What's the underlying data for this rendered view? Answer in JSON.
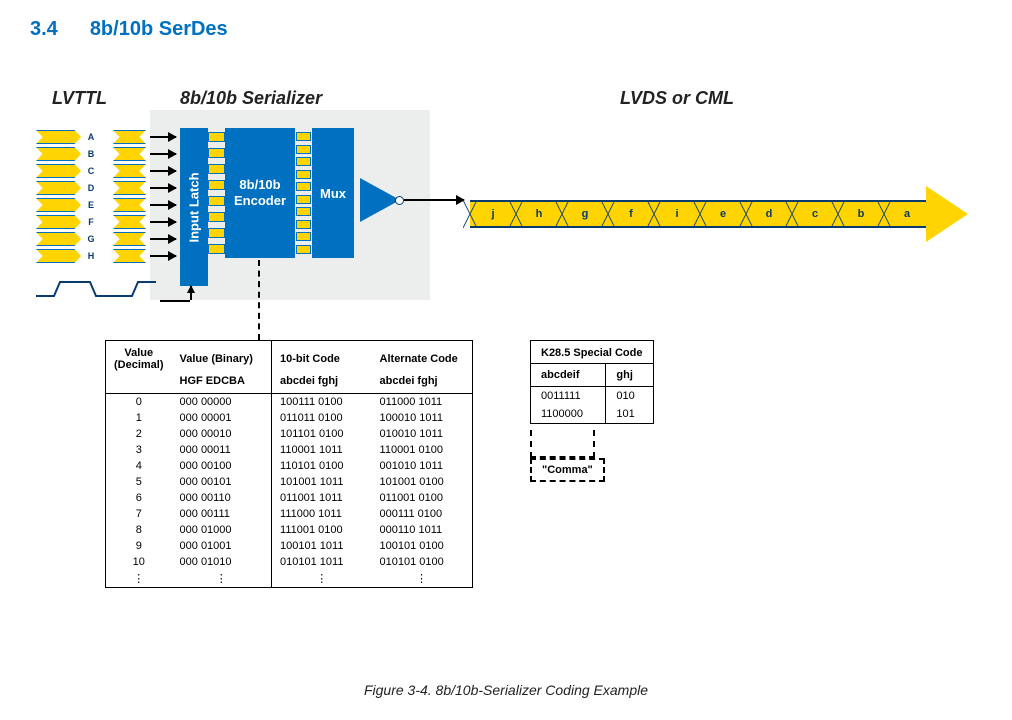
{
  "section": {
    "number": "3.4",
    "title": "8b/10b SerDes"
  },
  "labels": {
    "lvttl": "LVTTL",
    "serializer": "8b/10b Serializer",
    "lvds": "LVDS or CML"
  },
  "blocks": {
    "latch": "Input Latch",
    "encoder_l1": "8b/10b",
    "encoder_l2": "Encoder",
    "mux": "Mux"
  },
  "input_lanes": [
    "A",
    "B",
    "C",
    "D",
    "E",
    "F",
    "G",
    "H"
  ],
  "serial_bits": [
    "j",
    "h",
    "g",
    "f",
    "i",
    "e",
    "d",
    "c",
    "b",
    "a"
  ],
  "colors": {
    "blue": "#0070c0",
    "yellow": "#ffd400",
    "darkblue": "#0a3b6e",
    "gray": "#eceeee"
  },
  "main_table": {
    "headers": {
      "val_dec": "Value (Decimal)",
      "val_bin": "Value (Binary)",
      "code10": "10-bit Code",
      "alt": "Alternate Code",
      "bin_sub": "HGF EDCBA",
      "code_sub": "abcdei fghj",
      "alt_sub": "abcdei fghj"
    },
    "rows": [
      {
        "d": "0",
        "b": "000 00000",
        "c": "100111 0100",
        "a": "011000 1011"
      },
      {
        "d": "1",
        "b": "000 00001",
        "c": "011011 0100",
        "a": "100010 1011"
      },
      {
        "d": "2",
        "b": "000 00010",
        "c": "101101 0100",
        "a": "010010 1011"
      },
      {
        "d": "3",
        "b": "000 00011",
        "c": "110001 1011",
        "a": "110001 0100"
      },
      {
        "d": "4",
        "b": "000 00100",
        "c": "110101 0100",
        "a": "001010 1011"
      },
      {
        "d": "5",
        "b": "000 00101",
        "c": "101001 1011",
        "a": "101001 0100"
      },
      {
        "d": "6",
        "b": "000 00110",
        "c": "011001 1011",
        "a": "011001 0100"
      },
      {
        "d": "7",
        "b": "000 00111",
        "c": "111000 1011",
        "a": "000111 0100"
      },
      {
        "d": "8",
        "b": "000 01000",
        "c": "111001 0100",
        "a": "000110 1011"
      },
      {
        "d": "9",
        "b": "000 01001",
        "c": "100101 1011",
        "a": "100101 0100"
      },
      {
        "d": "10",
        "b": "000 01010",
        "c": "010101 1011",
        "a": "010101 0100"
      }
    ]
  },
  "k_table": {
    "title": "K28.5 Special Code",
    "sub1": "abcdeif",
    "sub2": "ghj",
    "rows": [
      {
        "a": "0011111",
        "b": "010"
      },
      {
        "a": "1100000",
        "b": "101"
      }
    ],
    "comma": "\"Comma\""
  },
  "caption": "Figure 3-4. 8b/10b-Serializer Coding Example"
}
